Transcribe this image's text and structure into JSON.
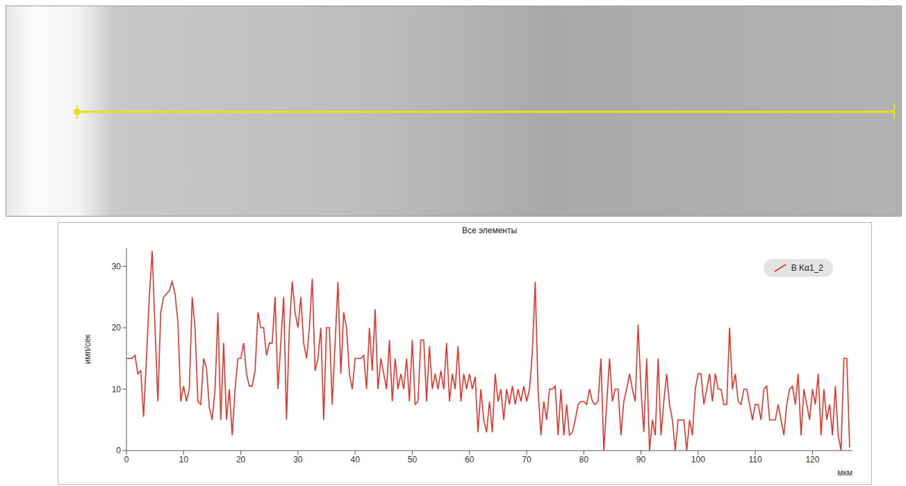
{
  "chart_data": {
    "type": "line",
    "title": "Все элементы",
    "x_label": "мкм",
    "y_label": "имп/сек",
    "x": [
      0,
      0.5,
      1,
      1.5,
      2,
      2.5,
      3,
      3.5,
      4,
      4.5,
      5,
      5.5,
      6,
      6.5,
      7,
      7.5,
      8,
      8.5,
      9,
      9.5,
      10,
      10.5,
      11,
      11.5,
      12,
      12.5,
      13,
      13.5,
      14,
      14.5,
      15,
      15.5,
      16,
      16.5,
      17,
      17.5,
      18,
      18.5,
      19,
      19.5,
      20,
      20.5,
      21,
      21.5,
      22,
      22.5,
      23,
      23.5,
      24,
      24.5,
      25,
      25.5,
      26,
      26.5,
      27,
      27.5,
      28,
      28.5,
      29,
      29.5,
      30,
      30.5,
      31,
      31.5,
      32,
      32.5,
      33,
      33.5,
      34,
      34.5,
      35,
      35.5,
      36,
      36.5,
      37,
      37.5,
      38,
      38.5,
      39,
      39.5,
      40,
      40.5,
      41,
      41.5,
      42,
      42.5,
      43,
      43.5,
      44,
      44.5,
      45,
      45.5,
      46,
      46.5,
      47,
      47.5,
      48,
      48.5,
      49,
      49.5,
      50,
      50.5,
      51,
      51.5,
      52,
      52.5,
      53,
      53.5,
      54,
      54.5,
      55,
      55.5,
      56,
      56.5,
      57,
      57.5,
      58,
      58.5,
      59,
      59.5,
      60,
      60.5,
      61,
      61.5,
      62,
      62.5,
      63,
      63.5,
      64,
      64.5,
      65,
      65.5,
      66,
      66.5,
      67,
      67.5,
      68,
      68.5,
      69,
      69.5,
      70,
      70.5,
      71,
      71.5,
      72,
      72.5,
      73,
      73.5,
      74,
      74.5,
      75,
      75.5,
      76,
      76.5,
      77,
      77.5,
      78,
      78.5,
      79,
      79.5,
      80,
      80.5,
      81,
      81.5,
      82,
      82.5,
      83,
      83.5,
      84,
      84.5,
      85,
      85.5,
      86,
      86.5,
      87,
      87.5,
      88,
      88.5,
      89,
      89.5,
      90,
      90.5,
      91,
      91.5,
      92,
      92.5,
      93,
      93.5,
      94,
      94.5,
      95,
      95.5,
      96,
      96.5,
      97,
      97.5,
      98,
      98.5,
      99,
      99.5,
      100,
      100.5,
      101,
      101.5,
      102,
      102.5,
      103,
      103.5,
      104,
      104.5,
      105,
      105.5,
      106,
      106.5,
      107,
      107.5,
      108,
      108.5,
      109,
      109.5,
      110,
      110.5,
      111,
      111.5,
      112,
      112.5,
      113,
      113.5,
      114,
      114.5,
      115,
      115.5,
      116,
      116.5,
      117,
      117.5,
      118,
      118.5,
      119,
      119.5,
      120,
      120.5,
      121,
      121.5,
      122,
      122.5,
      123,
      123.5,
      124,
      124.5,
      125,
      125.5,
      126,
      126.5
    ],
    "series": [
      {
        "name": "B Kα1_2",
        "color": "#e0332a",
        "values": [
          15,
          15,
          15,
          15.5,
          12.5,
          13,
          5.5,
          15,
          25,
          32.5,
          20,
          8,
          22.5,
          25,
          25.5,
          26,
          27.5,
          25.5,
          21,
          8,
          10.5,
          8,
          10,
          25,
          20,
          8,
          7.5,
          15,
          13.5,
          7,
          5,
          10,
          22.5,
          5,
          17.5,
          5,
          10,
          2.5,
          10,
          15,
          15,
          17.5,
          12.5,
          10.5,
          10.5,
          13,
          22.5,
          20,
          20,
          15.5,
          17.5,
          17.5,
          25,
          10,
          17.5,
          25,
          5,
          20,
          27.5,
          22.5,
          20,
          25,
          17.5,
          15,
          20,
          28,
          13,
          15,
          20,
          5,
          20,
          20,
          7.5,
          17.5,
          27.5,
          12.5,
          22.5,
          20,
          12.5,
          10,
          15,
          15,
          15,
          15.5,
          10,
          20,
          13,
          23,
          10,
          15,
          12.5,
          10,
          18,
          8,
          15,
          10,
          12.5,
          10,
          15,
          8,
          18,
          7.5,
          8,
          18,
          18,
          8,
          17,
          10,
          12.5,
          10,
          13,
          10,
          17.5,
          8,
          12.5,
          10,
          17,
          8,
          12.5,
          10,
          12.5,
          10,
          12,
          3,
          10,
          5,
          3,
          8,
          3,
          12.5,
          8,
          10,
          5,
          10,
          7.5,
          10.5,
          7.5,
          10,
          8,
          10.5,
          8,
          10,
          16,
          27.5,
          10,
          2.5,
          8,
          5,
          10,
          10,
          10.5,
          2.5,
          10,
          2.5,
          7.5,
          2.5,
          3,
          5,
          7.5,
          8,
          8,
          7.5,
          10,
          8,
          7.5,
          8,
          15,
          0,
          7.5,
          15,
          8,
          10,
          10,
          2.5,
          8,
          10,
          12.5,
          10,
          8,
          20.5,
          10,
          3,
          15,
          0,
          5,
          2.5,
          15,
          2.5,
          8,
          12.5,
          7.5,
          5,
          0,
          5,
          5,
          5,
          0,
          5,
          2.5,
          10,
          12.5,
          12.5,
          7.5,
          10,
          12.5,
          8,
          12.5,
          10,
          10,
          7.5,
          7.5,
          20,
          10,
          12.5,
          8,
          7.5,
          10,
          10,
          7.5,
          5,
          7.5,
          7.5,
          5,
          10,
          10.5,
          5,
          5,
          5,
          7.5,
          5,
          2.5,
          7.5,
          10,
          10.5,
          7.5,
          12.5,
          2.5,
          10,
          7.5,
          5,
          10,
          7.5,
          12.5,
          2.5,
          10,
          5,
          7.5,
          2.5,
          10.5,
          2.5,
          0,
          15,
          15,
          0.5
        ]
      }
    ],
    "xlim": [
      0,
      127
    ],
    "xticks": [
      0,
      10,
      20,
      30,
      40,
      50,
      60,
      70,
      80,
      90,
      100,
      110,
      120
    ],
    "ylim": [
      0,
      33
    ],
    "yticks": [
      0,
      10,
      20,
      30
    ],
    "grid": false,
    "legend": "upper right"
  }
}
